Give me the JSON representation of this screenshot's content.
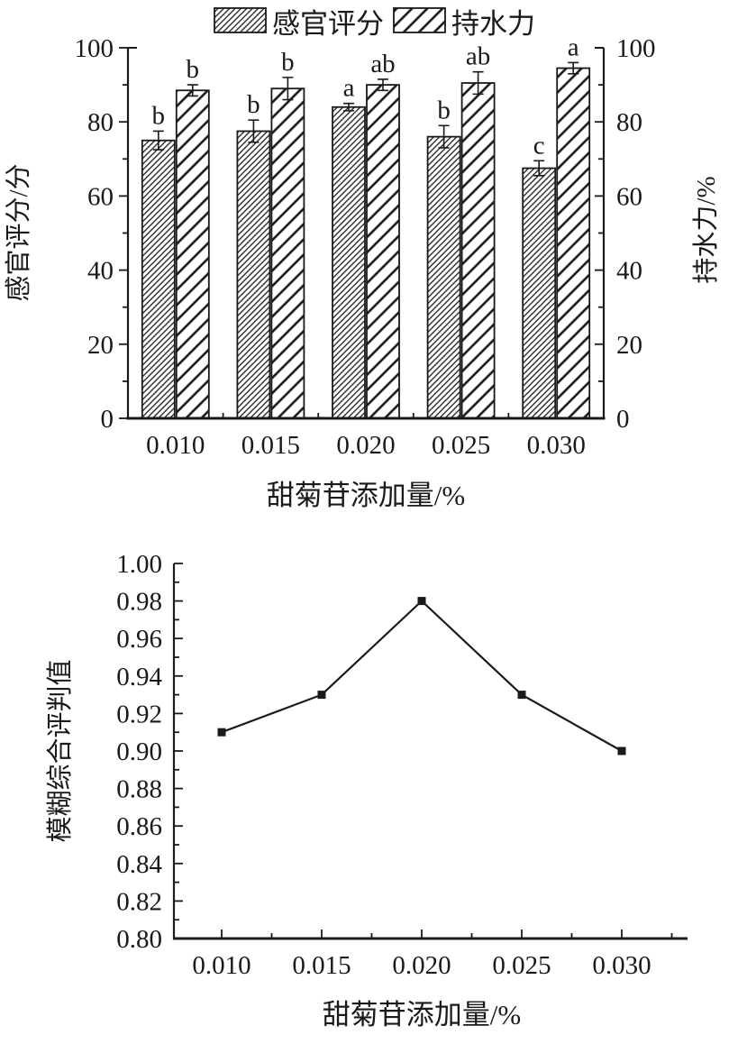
{
  "figure": {
    "background": "#ffffff",
    "ink_color": "#1a1a1a"
  },
  "chart_data": [
    {
      "id": "bar-chart",
      "type": "bar",
      "categories": [
        "0.010",
        "0.015",
        "0.020",
        "0.025",
        "0.030"
      ],
      "xlabel": "甜菊苷添加量/%",
      "left_axis": {
        "label": "感官评分/分",
        "lim": [
          0,
          100
        ],
        "major_step": 20,
        "minor_step": 10
      },
      "right_axis": {
        "label": "持水力/%",
        "lim": [
          0,
          100
        ],
        "major_step": 20,
        "minor_step": 10
      },
      "ytick_labels": [
        "0",
        "20",
        "40",
        "60",
        "80",
        "100"
      ],
      "legend": [
        {
          "label": "感官评分",
          "hatch": "dense-diagonal"
        },
        {
          "label": "持水力",
          "hatch": "sparse-diagonal"
        }
      ],
      "series": [
        {
          "name": "感官评分",
          "axis": "left",
          "hatch": "dense-diagonal",
          "values": [
            75,
            77.5,
            84,
            76,
            67.5
          ],
          "errors": [
            2.5,
            3,
            1,
            3,
            2
          ],
          "sig_letters": [
            "b",
            "b",
            "a",
            "b",
            "c"
          ]
        },
        {
          "name": "持水力",
          "axis": "right",
          "hatch": "sparse-diagonal",
          "values": [
            88.5,
            89,
            90,
            90.5,
            94.5
          ],
          "errors": [
            1.5,
            3,
            1.5,
            3,
            1.5
          ],
          "sig_letters": [
            "b",
            "b",
            "ab",
            "ab",
            "a"
          ]
        }
      ]
    },
    {
      "id": "line-chart",
      "type": "line",
      "x": [
        "0.010",
        "0.015",
        "0.020",
        "0.025",
        "0.030"
      ],
      "values": [
        0.91,
        0.93,
        0.98,
        0.93,
        0.9
      ],
      "xlabel": "甜菊苷添加量/%",
      "ylabel": "模糊综合评判值",
      "ylim": [
        0.8,
        1.0
      ],
      "ytick_labels": [
        "0.80",
        "0.82",
        "0.84",
        "0.86",
        "0.88",
        "0.90",
        "0.92",
        "0.94",
        "0.96",
        "0.98",
        "1.00"
      ],
      "marker": "filled-square",
      "legend_position": "none",
      "grid": false
    }
  ]
}
